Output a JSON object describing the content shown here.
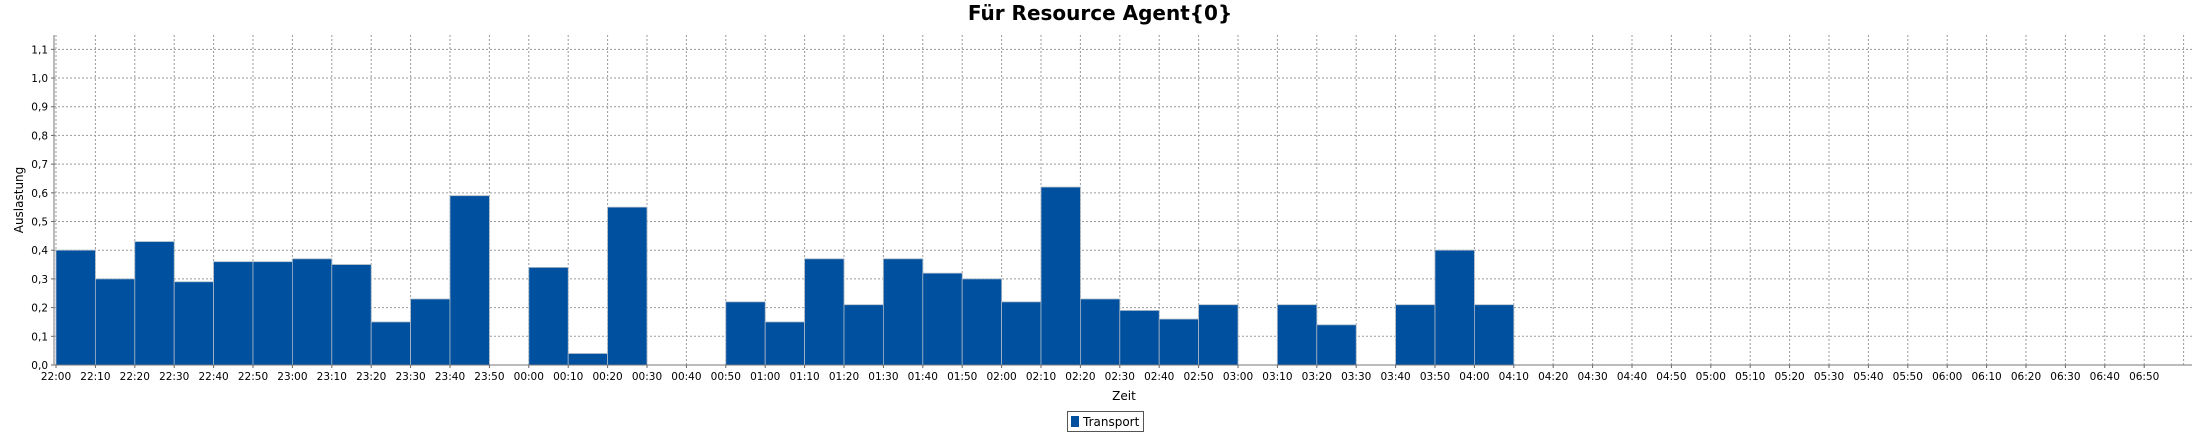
{
  "chart_data": {
    "type": "bar",
    "title": "Für Resource Agent{0}",
    "xlabel": "Zeit",
    "ylabel": "Auslastung",
    "ylim": [
      0,
      1.15
    ],
    "yticks": [
      "0,0",
      "0,1",
      "0,2",
      "0,3",
      "0,4",
      "0,5",
      "0,6",
      "0,7",
      "0,8",
      "0,9",
      "1,0",
      "1,1"
    ],
    "grid": true,
    "legend_position": "bottom-center",
    "series": [
      {
        "name": "Transport",
        "color": "#0050a0",
        "values": [
          0.4,
          0.3,
          0.43,
          0.29,
          0.36,
          0.36,
          0.37,
          0.35,
          0.15,
          0.23,
          0.59,
          0,
          0.34,
          0.04,
          0.55,
          0,
          0,
          0.22,
          0.15,
          0.37,
          0.21,
          0.37,
          0.32,
          0.3,
          0.22,
          0.62,
          0.23,
          0.19,
          0.16,
          0.21,
          0,
          0.21,
          0.14,
          0,
          0.21,
          0.4,
          0.21,
          0,
          0,
          0,
          0,
          0,
          0,
          0,
          0,
          0,
          0,
          0,
          0,
          0,
          0,
          0,
          0,
          0
        ]
      }
    ],
    "categories": [
      "22:00",
      "22:10",
      "22:20",
      "22:30",
      "22:40",
      "22:50",
      "23:00",
      "23:10",
      "23:20",
      "23:30",
      "23:40",
      "23:50",
      "00:00",
      "00:10",
      "00:20",
      "00:30",
      "00:40",
      "00:50",
      "01:00",
      "01:10",
      "01:20",
      "01:30",
      "01:40",
      "01:50",
      "02:00",
      "02:10",
      "02:20",
      "02:30",
      "02:40",
      "02:50",
      "03:00",
      "03:10",
      "03:20",
      "03:30",
      "03:40",
      "03:50",
      "04:00",
      "04:10",
      "04:20",
      "04:30",
      "04:40",
      "04:50",
      "05:00",
      "05:10",
      "05:20",
      "05:30",
      "05:40",
      "05:50",
      "06:00",
      "06:10",
      "06:20",
      "06:30",
      "06:40",
      "06:50"
    ]
  }
}
